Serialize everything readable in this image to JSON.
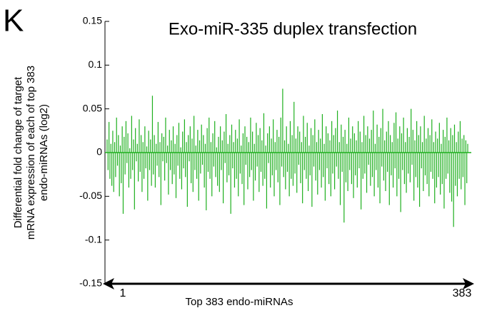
{
  "chart_data": {
    "type": "bar",
    "panel_label": "K",
    "title": "Exo-miR-335 duplex transfection",
    "y_label": [
      "Differential fold change of target",
      "mRNA expression of each of top 383",
      "endo-miRNAs (log2)"
    ],
    "x_label": "Top 383 endo-miRNAs",
    "color": "#1fb01f",
    "ylim": [
      -0.15,
      0.15
    ],
    "yticks": [
      0.15,
      0.1,
      0.05,
      0,
      -0.05,
      -0.1,
      -0.15
    ],
    "xlim": [
      1,
      383
    ],
    "xticks": [
      1,
      383
    ],
    "values": [
      0.015,
      -0.02,
      0.035,
      -0.03,
      0.01,
      -0.038,
      0.025,
      -0.045,
      0.012,
      -0.028,
      0.04,
      -0.015,
      0.02,
      -0.05,
      0.008,
      -0.035,
      0.03,
      -0.07,
      0.018,
      -0.025,
      0.036,
      -0.012,
      0.022,
      -0.04,
      0.005,
      -0.03,
      0.042,
      -0.02,
      0.015,
      -0.065,
      0.028,
      -0.01,
      0.01,
      -0.033,
      0.038,
      -0.022,
      0.02,
      -0.045,
      0.012,
      -0.03,
      0.03,
      -0.018,
      0.007,
      -0.055,
      0.025,
      -0.02,
      0.015,
      -0.038,
      0.065,
      -0.025,
      0.02,
      -0.04,
      0.01,
      -0.015,
      0.035,
      -0.028,
      0.012,
      -0.06,
      0.022,
      -0.01,
      0.018,
      -0.032,
      0.04,
      -0.012,
      0.008,
      -0.048,
      0.026,
      -0.02,
      0.014,
      -0.036,
      0.03,
      -0.025,
      0.01,
      -0.052,
      0.02,
      -0.015,
      0.034,
      -0.03,
      0.006,
      -0.042,
      0.024,
      -0.018,
      0.038,
      -0.028,
      0.012,
      -0.062,
      0.02,
      -0.01,
      0.03,
      -0.035,
      0.016,
      -0.045,
      0.042,
      -0.02,
      0.008,
      -0.03,
      0.026,
      -0.055,
      0.014,
      -0.024,
      0.032,
      -0.014,
      0.02,
      -0.04,
      0.01,
      -0.066,
      0.028,
      -0.022,
      0.04,
      -0.03,
      0.012,
      -0.05,
      0.022,
      -0.016,
      0.036,
      -0.028,
      0.006,
      -0.038,
      0.018,
      -0.045,
      0.03,
      -0.02,
      0.014,
      -0.058,
      0.024,
      -0.012,
      0.044,
      -0.034,
      0.01,
      -0.026,
      0.02,
      -0.07,
      0.032,
      -0.018,
      0.012,
      -0.04,
      0.026,
      -0.03,
      0.016,
      -0.05,
      0.038,
      -0.024,
      0.008,
      -0.036,
      0.022,
      -0.06,
      0.03,
      -0.014,
      0.018,
      -0.042,
      0.012,
      -0.028,
      0.04,
      -0.02,
      0.024,
      -0.055,
      0.01,
      -0.032,
      0.034,
      -0.016,
      0.02,
      -0.045,
      0.028,
      -0.022,
      0.014,
      -0.038,
      0.045,
      -0.03,
      0.008,
      -0.064,
      0.022,
      -0.012,
      0.03,
      -0.04,
      0.016,
      -0.026,
      0.038,
      -0.05,
      0.012,
      -0.02,
      0.026,
      -0.034,
      0.018,
      -0.06,
      0.04,
      -0.016,
      0.073,
      -0.028,
      0.014,
      -0.042,
      0.03,
      -0.022,
      0.01,
      -0.05,
      0.036,
      -0.03,
      0.02,
      -0.038,
      0.058,
      -0.024,
      0.016,
      -0.046,
      0.03,
      -0.014,
      0.024,
      -0.035,
      0.012,
      -0.058,
      0.042,
      -0.02,
      0.018,
      -0.03,
      0.034,
      -0.044,
      0.008,
      -0.026,
      0.028,
      -0.062,
      0.02,
      -0.016,
      0.038,
      -0.032,
      0.012,
      -0.048,
      0.026,
      -0.02,
      0.016,
      -0.04,
      0.044,
      -0.028,
      0.01,
      -0.055,
      0.03,
      -0.018,
      0.022,
      -0.036,
      0.014,
      -0.05,
      0.036,
      -0.024,
      0.02,
      -0.042,
      0.028,
      -0.016,
      0.048,
      -0.03,
      0.012,
      -0.06,
      0.032,
      -0.022,
      0.018,
      -0.08,
      0.026,
      -0.034,
      0.01,
      -0.044,
      0.04,
      -0.02,
      0.016,
      -0.036,
      0.03,
      -0.052,
      0.022,
      -0.026,
      0.014,
      -0.04,
      0.036,
      -0.018,
      0.024,
      -0.065,
      0.012,
      -0.03,
      0.042,
      -0.024,
      0.02,
      -0.046,
      0.03,
      -0.014,
      0.016,
      -0.038,
      0.026,
      -0.028,
      0.048,
      -0.05,
      0.01,
      -0.02,
      0.032,
      -0.04,
      0.018,
      -0.058,
      0.028,
      -0.016,
      0.05,
      -0.032,
      0.014,
      -0.044,
      0.024,
      -0.022,
      0.036,
      -0.06,
      0.02,
      -0.026,
      0.012,
      -0.04,
      0.034,
      -0.018,
      0.046,
      -0.05,
      0.016,
      -0.03,
      0.03,
      -0.068,
      0.022,
      -0.02,
      0.04,
      -0.036,
      0.012,
      -0.046,
      0.028,
      -0.024,
      0.018,
      -0.034,
      0.05,
      -0.014,
      0.026,
      -0.055,
      0.014,
      -0.028,
      0.036,
      -0.04,
      0.02,
      -0.062,
      0.03,
      -0.018,
      0.012,
      -0.044,
      0.042,
      -0.026,
      0.016,
      -0.036,
      0.028,
      -0.05,
      0.02,
      -0.022,
      0.038,
      -0.03,
      0.012,
      -0.058,
      0.024,
      -0.04,
      0.016,
      -0.028,
      0.034,
      -0.048,
      0.01,
      -0.036,
      0.026,
      -0.064,
      0.018,
      -0.03,
      0.04,
      -0.024,
      0.014,
      -0.046,
      0.028,
      -0.056,
      0.02,
      -0.085,
      0.032,
      -0.038,
      0.012,
      -0.05,
      0.024,
      -0.03,
      0.036,
      -0.042,
      0.016,
      -0.028,
      0.02,
      -0.06,
      0.014,
      -0.035,
      0.01
    ]
  }
}
